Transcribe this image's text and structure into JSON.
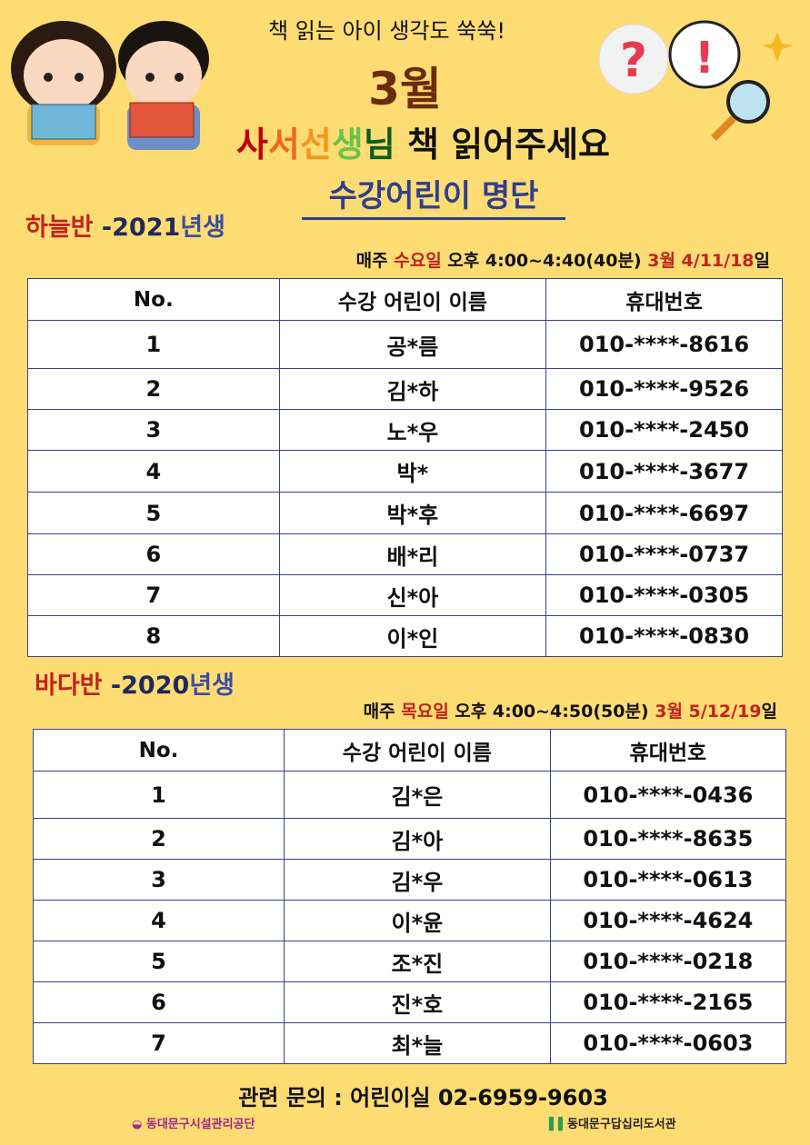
{
  "header": {
    "slogan": "책 읽는 아이 생각도 쑥쑥!",
    "month": "3월",
    "title_chars": [
      "사",
      "서",
      "선",
      "생",
      "님"
    ],
    "title_colors": [
      "#C00000",
      "#F26522",
      "#F7941D",
      "#6CC24A",
      "#0B5D1E"
    ],
    "title_rest": "책 읽어주세요",
    "subtitle": "수강어린이 명단"
  },
  "columns": [
    "No.",
    "수강 어린이 이름",
    "휴대번호"
  ],
  "class1": {
    "name": "하늘반",
    "dash": " -2021",
    "year": "년생",
    "sched_pre": "매주 ",
    "day": "수요일",
    "time": " 오후 4:00~4:40(40분) ",
    "month": "3월 4/11/18",
    "suffix": "일",
    "rows": [
      [
        "1",
        "공*름",
        "010-****-8616"
      ],
      [
        "2",
        "김*하",
        "010-****-9526"
      ],
      [
        "3",
        "노*우",
        "010-****-2450"
      ],
      [
        "4",
        "박*",
        "010-****-3677"
      ],
      [
        "5",
        "박*후",
        "010-****-6697"
      ],
      [
        "6",
        "배*리",
        "010-****-0737"
      ],
      [
        "7",
        "신*아",
        "010-****-0305"
      ],
      [
        "8",
        "이*인",
        "010-****-0830"
      ]
    ]
  },
  "class2": {
    "name": "바다반",
    "dash": " -2020",
    "year": "년생",
    "sched_pre": "매주 ",
    "day": "목요일",
    "time": " 오후 4:00~4:50(50분)  ",
    "month": "3월 5/12/19",
    "suffix": "일",
    "rows": [
      [
        "1",
        "김*은",
        "010-****-0436"
      ],
      [
        "2",
        "김*아",
        "010-****-8635"
      ],
      [
        "3",
        "김*우",
        "010-****-0613"
      ],
      [
        "4",
        "이*윤",
        "010-****-4624"
      ],
      [
        "5",
        "조*진",
        "010-****-0218"
      ],
      [
        "6",
        "진*호",
        "010-****-2165"
      ],
      [
        "7",
        "최*늘",
        "010-****-0603"
      ]
    ]
  },
  "footer": {
    "contact": "관련 문의 : 어린이실  02-6959-9603",
    "logo_left": "동대문구시설관리공단",
    "logo_right": "동대문구답십리도서관"
  },
  "colors": {
    "background": "#FEDC74",
    "table_border": "#3A3F8F"
  }
}
